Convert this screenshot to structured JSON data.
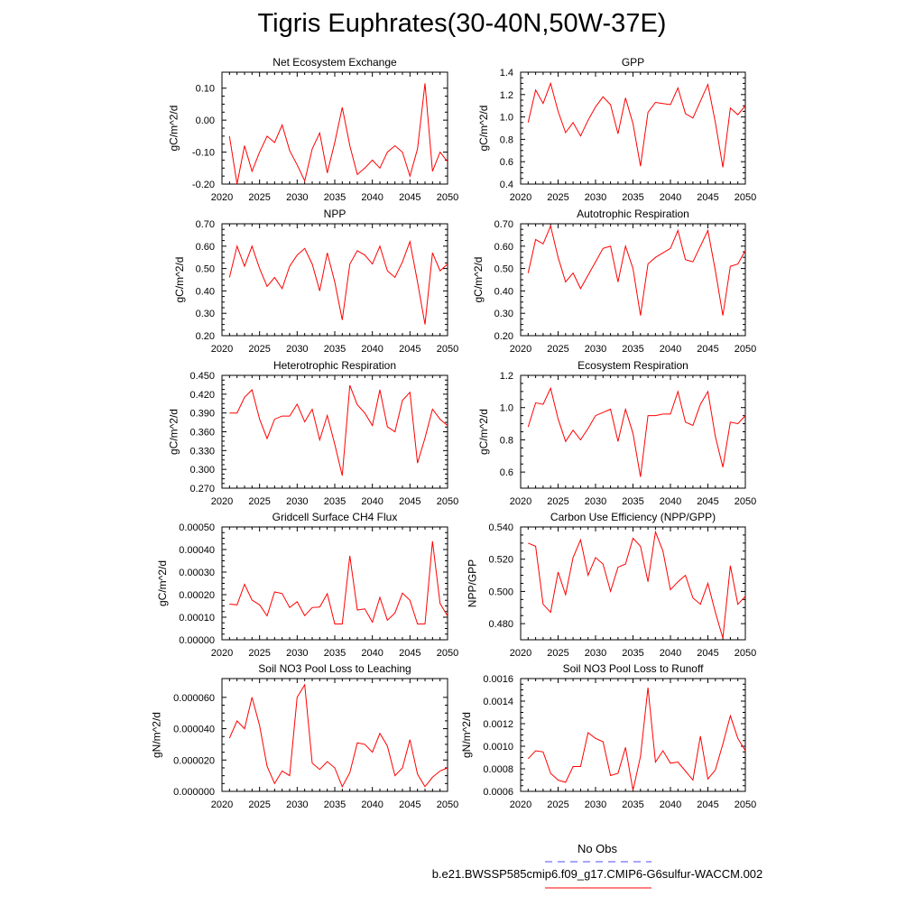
{
  "figure": {
    "title": "Tigris Euphrates(30-40N,50W-37E)"
  },
  "legend": {
    "items": [
      {
        "label": "No Obs",
        "color": "#4d4dff",
        "dash": true
      },
      {
        "label": "b.e21.BWSSP585cmip6.f09_g17.CMIP6-G6sulfur-WACCM.002",
        "color": "#ff0000",
        "dash": false
      }
    ]
  },
  "chart_data": [
    {
      "type": "line",
      "title": "Net Ecosystem Exchange",
      "ylabel": "gC/m^2/d",
      "xlabel": "",
      "xlim": [
        2020,
        2050
      ],
      "ylim": [
        -0.2,
        0.15
      ],
      "xticks": [
        2020,
        2025,
        2030,
        2035,
        2040,
        2045,
        2050
      ],
      "yticks": [
        -0.2,
        -0.1,
        0.0,
        0.1
      ],
      "ytick_labels": [
        "-0.20",
        "-0.10",
        "0.00",
        "0.10"
      ],
      "series_color": "#ff0000",
      "x": [
        2021,
        2022,
        2023,
        2024,
        2025,
        2026,
        2027,
        2028,
        2029,
        2030,
        2031,
        2032,
        2033,
        2034,
        2035,
        2036,
        2037,
        2038,
        2039,
        2040,
        2041,
        2042,
        2043,
        2044,
        2045,
        2046,
        2047,
        2048,
        2049,
        2050
      ],
      "values": [
        -0.05,
        -0.2,
        -0.08,
        -0.16,
        -0.1,
        -0.05,
        -0.07,
        -0.015,
        -0.095,
        -0.14,
        -0.19,
        -0.09,
        -0.04,
        -0.165,
        -0.07,
        0.04,
        -0.08,
        -0.17,
        -0.15,
        -0.125,
        -0.15,
        -0.1,
        -0.08,
        -0.1,
        -0.175,
        -0.09,
        0.115,
        -0.16,
        -0.1,
        -0.13
      ]
    },
    {
      "type": "line",
      "title": "GPP",
      "ylabel": "gC/m^2/d",
      "xlabel": "",
      "xlim": [
        2020,
        2050
      ],
      "ylim": [
        0.4,
        1.4
      ],
      "xticks": [
        2020,
        2025,
        2030,
        2035,
        2040,
        2045,
        2050
      ],
      "yticks": [
        0.4,
        0.6,
        0.8,
        1.0,
        1.2,
        1.4
      ],
      "ytick_labels": [
        "0.4",
        "0.6",
        "0.8",
        "1.0",
        "1.2",
        "1.4"
      ],
      "series_color": "#ff0000",
      "x": [
        2021,
        2022,
        2023,
        2024,
        2025,
        2026,
        2027,
        2028,
        2029,
        2030,
        2031,
        2032,
        2033,
        2034,
        2035,
        2036,
        2037,
        2038,
        2039,
        2040,
        2041,
        2042,
        2043,
        2044,
        2045,
        2046,
        2047,
        2048,
        2049,
        2050
      ],
      "values": [
        0.95,
        1.24,
        1.12,
        1.3,
        1.05,
        0.86,
        0.95,
        0.83,
        0.97,
        1.09,
        1.18,
        1.11,
        0.85,
        1.17,
        0.94,
        0.56,
        1.04,
        1.13,
        1.12,
        1.11,
        1.26,
        1.03,
        0.99,
        1.14,
        1.29,
        0.95,
        0.55,
        1.08,
        1.02,
        1.1
      ]
    },
    {
      "type": "line",
      "title": "NPP",
      "ylabel": "gC/m^2/d",
      "xlabel": "",
      "xlim": [
        2020,
        2050
      ],
      "ylim": [
        0.2,
        0.7
      ],
      "xticks": [
        2020,
        2025,
        2030,
        2035,
        2040,
        2045,
        2050
      ],
      "yticks": [
        0.2,
        0.3,
        0.4,
        0.5,
        0.6,
        0.7
      ],
      "ytick_labels": [
        "0.20",
        "0.30",
        "0.40",
        "0.50",
        "0.60",
        "0.70"
      ],
      "series_color": "#ff0000",
      "x": [
        2021,
        2022,
        2023,
        2024,
        2025,
        2026,
        2027,
        2028,
        2029,
        2030,
        2031,
        2032,
        2033,
        2034,
        2035,
        2036,
        2037,
        2038,
        2039,
        2040,
        2041,
        2042,
        2043,
        2044,
        2045,
        2046,
        2047,
        2048,
        2049,
        2050
      ],
      "values": [
        0.46,
        0.6,
        0.51,
        0.6,
        0.5,
        0.42,
        0.46,
        0.41,
        0.51,
        0.56,
        0.59,
        0.52,
        0.4,
        0.57,
        0.44,
        0.27,
        0.52,
        0.58,
        0.56,
        0.52,
        0.6,
        0.49,
        0.46,
        0.53,
        0.62,
        0.44,
        0.25,
        0.57,
        0.49,
        0.52
      ]
    },
    {
      "type": "line",
      "title": "Autotrophic Respiration",
      "ylabel": "gC/m^2/d",
      "xlabel": "",
      "xlim": [
        2020,
        2050
      ],
      "ylim": [
        0.2,
        0.7
      ],
      "xticks": [
        2020,
        2025,
        2030,
        2035,
        2040,
        2045,
        2050
      ],
      "yticks": [
        0.2,
        0.3,
        0.4,
        0.5,
        0.6,
        0.7
      ],
      "ytick_labels": [
        "0.20",
        "0.30",
        "0.40",
        "0.50",
        "0.60",
        "0.70"
      ],
      "series_color": "#ff0000",
      "x": [
        2021,
        2022,
        2023,
        2024,
        2025,
        2026,
        2027,
        2028,
        2029,
        2030,
        2031,
        2032,
        2033,
        2034,
        2035,
        2036,
        2037,
        2038,
        2039,
        2040,
        2041,
        2042,
        2043,
        2044,
        2045,
        2046,
        2047,
        2048,
        2049,
        2050
      ],
      "values": [
        0.48,
        0.63,
        0.61,
        0.69,
        0.55,
        0.44,
        0.48,
        0.41,
        0.47,
        0.53,
        0.59,
        0.6,
        0.44,
        0.6,
        0.5,
        0.29,
        0.52,
        0.55,
        0.57,
        0.59,
        0.67,
        0.54,
        0.53,
        0.6,
        0.67,
        0.49,
        0.29,
        0.51,
        0.52,
        0.58
      ]
    },
    {
      "type": "line",
      "title": "Heterotrophic Respiration",
      "ylabel": "gC/m^2/d",
      "xlabel": "",
      "xlim": [
        2020,
        2050
      ],
      "ylim": [
        0.27,
        0.45
      ],
      "xticks": [
        2020,
        2025,
        2030,
        2035,
        2040,
        2045,
        2050
      ],
      "yticks": [
        0.27,
        0.3,
        0.33,
        0.36,
        0.39,
        0.42,
        0.45
      ],
      "ytick_labels": [
        "0.270",
        "0.300",
        "0.330",
        "0.360",
        "0.390",
        "0.420",
        "0.450"
      ],
      "series_color": "#ff0000",
      "x": [
        2021,
        2022,
        2023,
        2024,
        2025,
        2026,
        2027,
        2028,
        2029,
        2030,
        2031,
        2032,
        2033,
        2034,
        2035,
        2036,
        2037,
        2038,
        2039,
        2040,
        2041,
        2042,
        2043,
        2044,
        2045,
        2046,
        2047,
        2048,
        2049,
        2050
      ],
      "values": [
        0.39,
        0.39,
        0.415,
        0.427,
        0.38,
        0.349,
        0.38,
        0.385,
        0.385,
        0.404,
        0.376,
        0.396,
        0.347,
        0.386,
        0.34,
        0.29,
        0.434,
        0.403,
        0.39,
        0.37,
        0.427,
        0.368,
        0.36,
        0.41,
        0.423,
        0.31,
        0.35,
        0.396,
        0.38,
        0.37
      ]
    },
    {
      "type": "line",
      "title": "Ecosystem Respiration",
      "ylabel": "gC/m^2/d",
      "xlabel": "",
      "xlim": [
        2020,
        2050
      ],
      "ylim": [
        0.5,
        1.2
      ],
      "xticks": [
        2020,
        2025,
        2030,
        2035,
        2040,
        2045,
        2050
      ],
      "yticks": [
        0.6,
        0.8,
        1.0,
        1.2
      ],
      "ytick_labels": [
        "0.6",
        "0.8",
        "1.0",
        "1.2"
      ],
      "series_color": "#ff0000",
      "x": [
        2021,
        2022,
        2023,
        2024,
        2025,
        2026,
        2027,
        2028,
        2029,
        2030,
        2031,
        2032,
        2033,
        2034,
        2035,
        2036,
        2037,
        2038,
        2039,
        2040,
        2041,
        2042,
        2043,
        2044,
        2045,
        2046,
        2047,
        2048,
        2049,
        2050
      ],
      "values": [
        0.88,
        1.03,
        1.02,
        1.12,
        0.93,
        0.79,
        0.86,
        0.8,
        0.87,
        0.95,
        0.97,
        0.99,
        0.79,
        0.99,
        0.84,
        0.57,
        0.95,
        0.95,
        0.96,
        0.96,
        1.1,
        0.91,
        0.89,
        1.02,
        1.1,
        0.82,
        0.63,
        0.91,
        0.9,
        0.95
      ]
    },
    {
      "type": "line",
      "title": "Gridcell Surface CH4 Flux",
      "ylabel": "gC/m^2/d",
      "xlabel": "",
      "xlim": [
        2020,
        2050
      ],
      "ylim": [
        0.0,
        0.0005
      ],
      "xticks": [
        2020,
        2025,
        2030,
        2035,
        2040,
        2045,
        2050
      ],
      "yticks": [
        0.0,
        0.0001,
        0.0002,
        0.0003,
        0.0004,
        0.0005
      ],
      "ytick_labels": [
        "0.00000",
        "0.00010",
        "0.00020",
        "0.00030",
        "0.00040",
        "0.00050"
      ],
      "series_color": "#ff0000",
      "x": [
        2021,
        2022,
        2023,
        2024,
        2025,
        2026,
        2027,
        2028,
        2029,
        2030,
        2031,
        2032,
        2033,
        2034,
        2035,
        2036,
        2037,
        2038,
        2039,
        2040,
        2041,
        2042,
        2043,
        2044,
        2045,
        2046,
        2047,
        2048,
        2049,
        2050
      ],
      "values": [
        0.000158,
        0.000155,
        0.000246,
        0.000176,
        0.000155,
        0.000106,
        0.000212,
        0.000205,
        0.000143,
        0.000169,
        0.000107,
        0.000143,
        0.000145,
        0.000204,
        7e-05,
        7e-05,
        0.000372,
        0.000132,
        0.000137,
        7.8e-05,
        0.000188,
        8.7e-05,
        0.000119,
        0.000207,
        0.000175,
        7e-05,
        7e-05,
        0.000437,
        0.000161,
        0.000105
      ]
    },
    {
      "type": "line",
      "title": "Carbon Use Efficiency (NPP/GPP)",
      "ylabel": "NPP/GPP",
      "xlabel": "",
      "xlim": [
        2020,
        2050
      ],
      "ylim": [
        0.47,
        0.54
      ],
      "xticks": [
        2020,
        2025,
        2030,
        2035,
        2040,
        2045,
        2050
      ],
      "yticks": [
        0.48,
        0.5,
        0.52,
        0.54
      ],
      "ytick_labels": [
        "0.480",
        "0.500",
        "0.520",
        "0.540"
      ],
      "series_color": "#ff0000",
      "x": [
        2021,
        2022,
        2023,
        2024,
        2025,
        2026,
        2027,
        2028,
        2029,
        2030,
        2031,
        2032,
        2033,
        2034,
        2035,
        2036,
        2037,
        2038,
        2039,
        2040,
        2041,
        2042,
        2043,
        2044,
        2045,
        2046,
        2047,
        2048,
        2049,
        2050
      ],
      "values": [
        0.53,
        0.528,
        0.492,
        0.487,
        0.512,
        0.498,
        0.521,
        0.532,
        0.51,
        0.521,
        0.517,
        0.5,
        0.515,
        0.517,
        0.533,
        0.528,
        0.506,
        0.537,
        0.525,
        0.501,
        0.506,
        0.51,
        0.496,
        0.492,
        0.505,
        0.487,
        0.471,
        0.516,
        0.492,
        0.497
      ]
    },
    {
      "type": "line",
      "title": "Soil NO3 Pool Loss to Leaching",
      "ylabel": "gN/m^2/d",
      "xlabel": "",
      "xlim": [
        2020,
        2050
      ],
      "ylim": [
        0.0,
        7.2e-05
      ],
      "xticks": [
        2020,
        2025,
        2030,
        2035,
        2040,
        2045,
        2050
      ],
      "yticks": [
        0.0,
        2e-05,
        4e-05,
        6e-05
      ],
      "ytick_labels": [
        "0.000000",
        "0.000020",
        "0.000040",
        "0.000060"
      ],
      "series_color": "#ff0000",
      "x": [
        2021,
        2022,
        2023,
        2024,
        2025,
        2026,
        2027,
        2028,
        2029,
        2030,
        2031,
        2032,
        2033,
        2034,
        2035,
        2036,
        2037,
        2038,
        2039,
        2040,
        2041,
        2042,
        2043,
        2044,
        2045,
        2046,
        2047,
        2048,
        2049,
        2050
      ],
      "values": [
        3.4e-05,
        4.5e-05,
        4e-05,
        6e-05,
        4.2e-05,
        1.6e-05,
        5e-06,
        1.3e-05,
        1e-05,
        6e-05,
        6.8e-05,
        1.8e-05,
        1.4e-05,
        1.9e-05,
        1.5e-05,
        3e-06,
        1.2e-05,
        3.1e-05,
        3e-05,
        2.5e-05,
        3.7e-05,
        2.9e-05,
        1e-05,
        1.5e-05,
        3.3e-05,
        1.1e-05,
        3e-06,
        9e-06,
        1.3e-05,
        1.5e-05
      ]
    },
    {
      "type": "line",
      "title": "Soil NO3 Pool Loss to Runoff",
      "ylabel": "gN/m^2/d",
      "xlabel": "",
      "xlim": [
        2020,
        2050
      ],
      "ylim": [
        0.0006,
        0.0016
      ],
      "xticks": [
        2020,
        2025,
        2030,
        2035,
        2040,
        2045,
        2050
      ],
      "yticks": [
        0.0006,
        0.0008,
        0.001,
        0.0012,
        0.0014,
        0.0016
      ],
      "ytick_labels": [
        "0.0006",
        "0.0008",
        "0.0010",
        "0.0012",
        "0.0014",
        "0.0016"
      ],
      "series_color": "#ff0000",
      "x": [
        2021,
        2022,
        2023,
        2024,
        2025,
        2026,
        2027,
        2028,
        2029,
        2030,
        2031,
        2032,
        2033,
        2034,
        2035,
        2036,
        2037,
        2038,
        2039,
        2040,
        2041,
        2042,
        2043,
        2044,
        2045,
        2046,
        2047,
        2048,
        2049,
        2050
      ],
      "values": [
        0.00089,
        0.00096,
        0.00095,
        0.00076,
        0.0007,
        0.00068,
        0.00082,
        0.00082,
        0.00112,
        0.00107,
        0.00104,
        0.00074,
        0.00076,
        0.00099,
        0.00061,
        0.00091,
        0.00152,
        0.00086,
        0.00096,
        0.00085,
        0.00086,
        0.00078,
        0.0007,
        0.00109,
        0.00071,
        0.00079,
        0.00102,
        0.00127,
        0.00107,
        0.00096
      ]
    }
  ]
}
